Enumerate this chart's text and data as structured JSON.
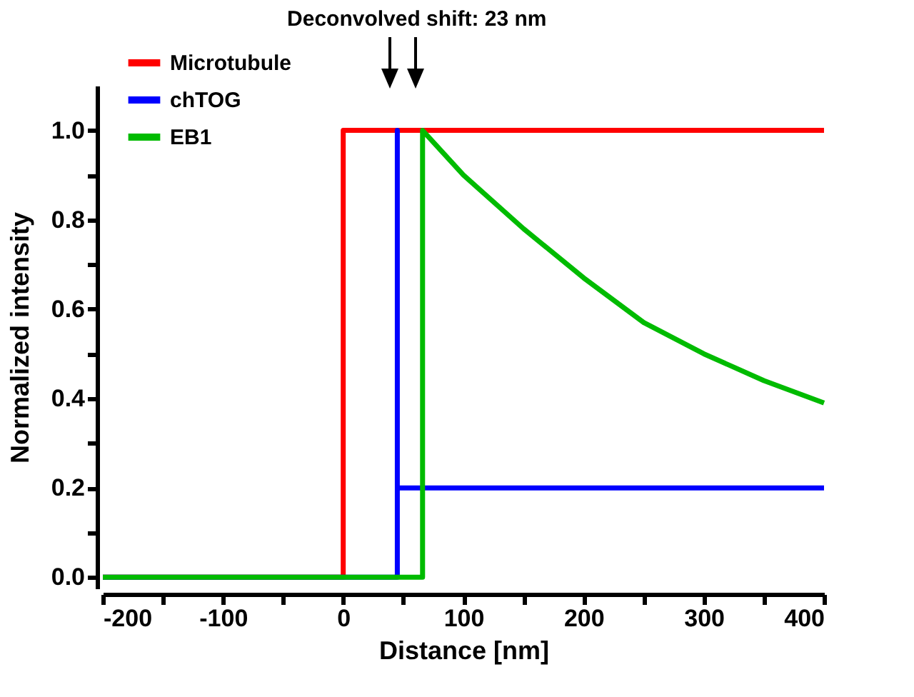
{
  "chart_data": {
    "type": "line",
    "xlabel": "Distance [nm]",
    "ylabel": "Normalized intensity",
    "annotations": [
      "Deconvolved shift: 23 nm"
    ],
    "xlim": [
      -200,
      400
    ],
    "xticks": [
      -200,
      {
        "value": -150,
        "label": null
      },
      -100,
      {
        "value": -50,
        "label": null
      },
      0,
      {
        "value": 50,
        "label": null
      },
      100,
      {
        "value": 150,
        "label": null
      },
      200,
      {
        "value": 250,
        "label": null
      },
      300,
      {
        "value": 350,
        "label": null
      },
      400
    ],
    "ylim": [
      -0.025,
      1.1
    ],
    "yticks": [
      {
        "value": 0,
        "label": "0.0"
      },
      {
        "value": 0.1,
        "label": null
      },
      0.2,
      {
        "value": 0.3,
        "label": null
      },
      0.4,
      {
        "value": 0.5,
        "label": null
      },
      0.6,
      {
        "value": 0.7,
        "label": null
      },
      0.8,
      {
        "value": 0.9,
        "label": null
      },
      {
        "value": 1,
        "label": "1.0"
      }
    ],
    "legend": "top left",
    "grid": false,
    "marker": "none",
    "line_style": "solid",
    "series": [
      {
        "name": "Microtubule",
        "color": "#ff0000",
        "x": [
          -200,
          0,
          0,
          400
        ],
        "values": [
          0,
          0,
          1,
          1
        ]
      },
      {
        "name": "chTOG",
        "color": "#0000ff",
        "x": [
          -200,
          45,
          45,
          45,
          400
        ],
        "values": [
          0,
          0,
          1,
          0.2,
          0.2
        ]
      },
      {
        "name": "EB1",
        "color": "#00bb00",
        "x": [
          -200,
          66,
          66,
          100,
          150,
          200,
          250,
          300,
          350,
          400
        ],
        "values": [
          0,
          0,
          1,
          0.9,
          0.78,
          0.67,
          0.57,
          0.5,
          0.44,
          0.39
        ]
      }
    ]
  }
}
